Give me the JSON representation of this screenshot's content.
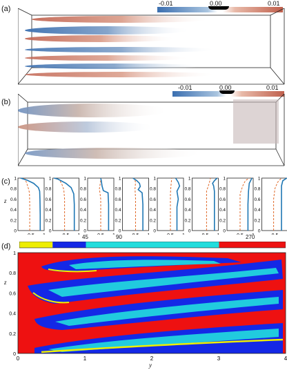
{
  "panels": {
    "a": {
      "label": "(a)",
      "colorbar": {
        "min": "-0.01",
        "mid": "0.00",
        "max": "0.01"
      }
    },
    "b": {
      "label": "(b)",
      "colorbar": {
        "min": "-0.01",
        "mid": "0.00",
        "max": "0.01"
      }
    },
    "c": {
      "label": "(c)"
    },
    "d": {
      "label": "(d)",
      "angle_colorbar": {
        "ticks": [
          "45",
          "90",
          "270"
        ]
      }
    }
  },
  "colors": {
    "neg": "#3b6fb0",
    "pos": "#c0604d",
    "profile_solid": "#1f77b4",
    "profile_dashed": "#e06a2a",
    "map_red": "#ee1111",
    "map_blue": "#1428e6",
    "map_cyan": "#22dddd",
    "map_yellow": "#eeee00"
  },
  "chart_data": [
    {
      "type": "line",
      "title": "",
      "xlabel": "",
      "ylabel": "z",
      "xlim": [
        0,
        1
      ],
      "ylim": [
        0,
        1
      ],
      "x_ticks": [
        "0.5",
        "1"
      ],
      "y_ticks": [
        "0",
        "0.2",
        "0.4",
        "0.6",
        "0.8",
        "1"
      ],
      "subplots": [
        {
          "solid": [
            [
              0.85,
              0
            ],
            [
              0.85,
              0.3
            ],
            [
              0.84,
              0.6
            ],
            [
              0.83,
              0.75
            ],
            [
              0.78,
              0.82
            ],
            [
              0.6,
              0.9
            ],
            [
              0.35,
              0.96
            ],
            [
              0.1,
              1
            ]
          ],
          "dashed": [
            [
              0.45,
              0
            ],
            [
              0.45,
              0.5
            ],
            [
              0.44,
              0.72
            ],
            [
              0.4,
              0.8
            ],
            [
              0.35,
              0.88
            ],
            [
              0.3,
              0.95
            ],
            [
              0.25,
              1
            ]
          ]
        },
        {
          "solid": [
            [
              0.82,
              0
            ],
            [
              0.82,
              0.5
            ],
            [
              0.8,
              0.7
            ],
            [
              0.7,
              0.82
            ],
            [
              0.5,
              0.9
            ],
            [
              0.2,
              0.98
            ],
            [
              0.05,
              1
            ]
          ],
          "dashed": [
            [
              0.45,
              0
            ],
            [
              0.45,
              0.6
            ],
            [
              0.42,
              0.78
            ],
            [
              0.35,
              0.88
            ],
            [
              0.25,
              0.97
            ]
          ]
        },
        {
          "solid": [
            [
              0.8,
              0
            ],
            [
              0.8,
              0.5
            ],
            [
              0.78,
              0.72
            ],
            [
              0.6,
              0.76
            ],
            [
              0.55,
              0.85
            ],
            [
              0.52,
              0.95
            ],
            [
              0.5,
              1
            ]
          ],
          "dashed": [
            [
              0.5,
              0
            ],
            [
              0.5,
              0.6
            ],
            [
              0.45,
              0.8
            ],
            [
              0.5,
              0.95
            ],
            [
              0.52,
              1
            ]
          ]
        },
        {
          "solid": [
            [
              0.78,
              0
            ],
            [
              0.78,
              0.5
            ],
            [
              0.75,
              0.72
            ],
            [
              0.6,
              0.78
            ],
            [
              0.68,
              0.84
            ],
            [
              0.65,
              0.9
            ],
            [
              0.55,
              0.95
            ],
            [
              0.4,
              1
            ]
          ],
          "dashed": [
            [
              0.5,
              0
            ],
            [
              0.5,
              0.6
            ],
            [
              0.48,
              0.8
            ],
            [
              0.5,
              0.92
            ],
            [
              0.45,
              1
            ]
          ]
        },
        {
          "solid": [
            [
              0.75,
              0
            ],
            [
              0.75,
              0.45
            ],
            [
              0.8,
              0.6
            ],
            [
              0.75,
              0.75
            ],
            [
              0.85,
              0.85
            ],
            [
              0.8,
              0.92
            ],
            [
              0.7,
              1
            ]
          ],
          "dashed": [
            [
              0.5,
              0
            ],
            [
              0.5,
              0.7
            ],
            [
              0.52,
              0.85
            ],
            [
              0.55,
              1
            ]
          ]
        },
        {
          "solid": [
            [
              0.85,
              0
            ],
            [
              0.85,
              0.5
            ],
            [
              0.85,
              0.75
            ],
            [
              0.82,
              0.85
            ],
            [
              0.78,
              0.9
            ],
            [
              0.85,
              0.95
            ],
            [
              0.95,
              1
            ]
          ],
          "dashed": [
            [
              0.55,
              0
            ],
            [
              0.55,
              0.75
            ],
            [
              0.65,
              0.9
            ],
            [
              0.7,
              1
            ]
          ]
        },
        {
          "solid": [
            [
              0.8,
              0
            ],
            [
              0.8,
              0.5
            ],
            [
              0.82,
              0.75
            ],
            [
              0.85,
              0.9
            ],
            [
              0.95,
              1
            ]
          ],
          "dashed": [
            [
              0.5,
              0
            ],
            [
              0.5,
              0.7
            ],
            [
              0.6,
              0.85
            ],
            [
              0.7,
              0.95
            ],
            [
              0.85,
              1
            ]
          ]
        },
        {
          "solid": [
            [
              0.75,
              0
            ],
            [
              0.75,
              0.6
            ],
            [
              0.75,
              0.85
            ],
            [
              0.8,
              0.95
            ],
            [
              0.95,
              1
            ]
          ],
          "dashed": [
            [
              0.45,
              0
            ],
            [
              0.45,
              0.6
            ],
            [
              0.5,
              0.8
            ],
            [
              0.6,
              0.92
            ],
            [
              0.75,
              1
            ]
          ]
        }
      ]
    },
    {
      "type": "heatmap",
      "title": "",
      "xlabel": "y",
      "ylabel": "z",
      "xlim": [
        0,
        4
      ],
      "ylim": [
        0,
        1
      ],
      "x_ticks": [
        "0",
        "1",
        "2",
        "3",
        "4"
      ],
      "y_ticks": [
        "0",
        "0.2",
        "0.4",
        "0.6",
        "0.8",
        "1"
      ],
      "angle_segments": [
        {
          "from": 0,
          "to": 45,
          "color": "#eeee00"
        },
        {
          "from": 45,
          "to": 90,
          "color": "#1428e6"
        },
        {
          "from": 90,
          "to": 270,
          "color": "#22dddd"
        },
        {
          "from": 270,
          "to": 360,
          "color": "#ee1111"
        }
      ]
    }
  ]
}
